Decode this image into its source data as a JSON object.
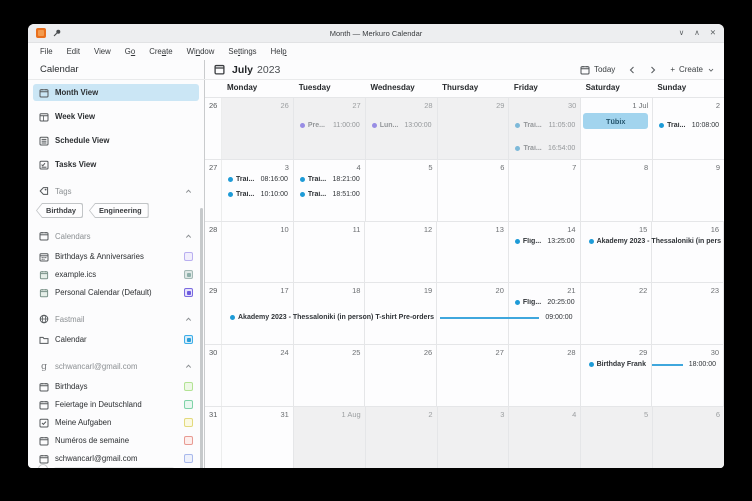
{
  "window": {
    "title": "Month — Merkuro Calendar",
    "controls": {
      "minimize": "∨",
      "maximize": "∧",
      "close": "✕"
    }
  },
  "menubar": [
    {
      "label": "File"
    },
    {
      "label": "Edit"
    },
    {
      "label": "View"
    },
    {
      "label": "Go",
      "underline": 1
    },
    {
      "label": "Create",
      "underline": 3
    },
    {
      "label": "Window",
      "underline": 2
    },
    {
      "label": "Settings",
      "underline": 2
    },
    {
      "label": "Help",
      "underline": 3
    }
  ],
  "toolbar": {
    "month": "July",
    "year": "2023",
    "today_label": "Today",
    "create_label": "Create",
    "plus": "+"
  },
  "sidebar": {
    "header": "Calendar",
    "views": [
      {
        "label": "Month View",
        "icon": "month-view",
        "selected": true
      },
      {
        "label": "Week View",
        "icon": "week-view",
        "selected": false
      },
      {
        "label": "Schedule View",
        "icon": "schedule-view",
        "selected": false
      },
      {
        "label": "Tasks View",
        "icon": "tasks-view",
        "selected": false
      }
    ],
    "tags": {
      "header": "Tags",
      "items": [
        "Birthday",
        "Engineering"
      ]
    },
    "groups": [
      {
        "header": "Calendars",
        "icon": "calendar",
        "items": [
          {
            "label": "Birthdays & Anniversaries",
            "icon": "birthday-calendar",
            "check": {
              "bg": "#f1eefc",
              "border": "#b9aff0",
              "inner": ""
            }
          },
          {
            "label": "example.ics",
            "icon": "calendar-sheet",
            "check": {
              "bg": "#dfe8e6",
              "border": "#a3b9b5",
              "inner": "#8fb0ab"
            }
          },
          {
            "label": "Personal Calendar (Default)",
            "icon": "calendar-sheet",
            "check": {
              "bg": "#e6e2fb",
              "border": "#7a6ae0",
              "inner": "#6d5ce0"
            }
          }
        ]
      },
      {
        "header": "Fastmail",
        "icon": "globe",
        "items": [
          {
            "label": "Calendar",
            "icon": "folder",
            "check": {
              "bg": "#d8edf9",
              "border": "#3daee9",
              "inner": "#2d9fd9"
            }
          }
        ]
      },
      {
        "header": "schwancarl@gmail.com",
        "icon": "google",
        "items": [
          {
            "label": "Birthdays",
            "icon": "calendar",
            "check": {
              "bg": "#eef8e6",
              "border": "#b3e394",
              "inner": ""
            }
          },
          {
            "label": "Feiertage in Deutschland",
            "icon": "calendar",
            "check": {
              "bg": "#e9f7f0",
              "border": "#7fd3a8",
              "inner": ""
            }
          },
          {
            "label": "Meine Aufgaben",
            "icon": "task",
            "check": {
              "bg": "#fbf9e2",
              "border": "#e3da7c",
              "inner": ""
            }
          },
          {
            "label": "Numéros de semaine",
            "icon": "calendar",
            "check": {
              "bg": "#fdeeec",
              "border": "#e89a92",
              "inner": ""
            }
          },
          {
            "label": "schwancarl@gmail.com",
            "icon": "calendar",
            "check": {
              "bg": "#eef1fb",
              "border": "#a9b9ec",
              "inner": ""
            }
          }
        ]
      }
    ]
  },
  "colors": {
    "accent": "#3daee9",
    "event_blue": "#1e9bd7",
    "event_blue_muted": "#7db9d9",
    "event_purple": "#988de4",
    "multiday_line": "#3fa7dd",
    "allday_bg": "#a2d4ee",
    "allday_text": "#25556e",
    "selected_view_bg": "#cbe6f5",
    "out_month_bg": "#f0f0f1"
  },
  "calendar": {
    "day_headers": [
      "Monday",
      "Tuesday",
      "Wednesday",
      "Thursday",
      "Friday",
      "Saturday",
      "Sunday"
    ],
    "weeks": [
      {
        "number": "26",
        "days": [
          {
            "date": "26",
            "out": true,
            "events": []
          },
          {
            "date": "27",
            "out": true,
            "events": [
              {
                "title": "Pre...",
                "time": "11:00:00",
                "color": "purple",
                "muted": true
              }
            ]
          },
          {
            "date": "28",
            "out": true,
            "events": [
              {
                "title": "Lun...",
                "time": "13:00:00",
                "color": "purple",
                "muted": true
              }
            ]
          },
          {
            "date": "29",
            "out": true,
            "events": []
          },
          {
            "date": "30",
            "out": true,
            "events": [
              {
                "title": "Trai...",
                "time": "11:05:00",
                "color": "blue-muted",
                "muted": true
              },
              {
                "title": "Trai...",
                "time": "16:54:00",
                "color": "blue-muted",
                "muted": true
              }
            ]
          },
          {
            "date": "1 Jul",
            "out": false,
            "events": [],
            "allday": [
              {
                "title": "Tübix"
              }
            ]
          },
          {
            "date": "2",
            "out": false,
            "events": [
              {
                "title": "Trai...",
                "time": "10:08:00",
                "color": "blue",
                "muted": false
              }
            ]
          }
        ],
        "multiday": []
      },
      {
        "number": "27",
        "days": [
          {
            "date": "3",
            "out": false,
            "events": [
              {
                "title": "Trai...",
                "time": "08:16:00",
                "color": "blue",
                "muted": false
              },
              {
                "title": "Trai...",
                "time": "10:10:00",
                "color": "blue",
                "muted": false
              }
            ]
          },
          {
            "date": "4",
            "out": false,
            "events": [
              {
                "title": "Trai...",
                "time": "18:21:00",
                "color": "blue",
                "muted": false
              },
              {
                "title": "Trai...",
                "time": "18:51:00",
                "color": "blue",
                "muted": false
              }
            ]
          },
          {
            "date": "5",
            "out": false,
            "events": []
          },
          {
            "date": "6",
            "out": false,
            "events": []
          },
          {
            "date": "7",
            "out": false,
            "events": []
          },
          {
            "date": "8",
            "out": false,
            "events": []
          },
          {
            "date": "9",
            "out": false,
            "events": []
          }
        ],
        "multiday": []
      },
      {
        "number": "28",
        "days": [
          {
            "date": "10",
            "out": false,
            "events": []
          },
          {
            "date": "11",
            "out": false,
            "events": []
          },
          {
            "date": "12",
            "out": false,
            "events": []
          },
          {
            "date": "13",
            "out": false,
            "events": []
          },
          {
            "date": "14",
            "out": false,
            "events": [
              {
                "title": "Flig...",
                "time": "13:25:00",
                "color": "blue",
                "muted": false
              }
            ]
          },
          {
            "date": "15",
            "out": false,
            "events": []
          },
          {
            "date": "16",
            "out": false,
            "events": []
          }
        ],
        "multiday": [
          {
            "title": "Akademy 2023 - Thessaloniki (in pers",
            "time": "",
            "start": 5,
            "span": 2,
            "slot": 0,
            "line": false,
            "clipped": true
          }
        ]
      },
      {
        "number": "29",
        "days": [
          {
            "date": "17",
            "out": false,
            "events": []
          },
          {
            "date": "18",
            "out": false,
            "events": []
          },
          {
            "date": "19",
            "out": false,
            "events": []
          },
          {
            "date": "20",
            "out": false,
            "events": []
          },
          {
            "date": "21",
            "out": false,
            "events": [
              {
                "title": "Flig...",
                "time": "20:25:00",
                "color": "blue",
                "muted": false
              }
            ]
          },
          {
            "date": "22",
            "out": false,
            "events": []
          },
          {
            "date": "23",
            "out": false,
            "events": []
          }
        ],
        "multiday": [
          {
            "title": "Akademy 2023 - Thessaloniki (in person) T-shirt Pre-orders",
            "time": "09:00:00",
            "start": 0,
            "span": 5,
            "slot": 1,
            "line": true,
            "clipped": false
          }
        ]
      },
      {
        "number": "30",
        "days": [
          {
            "date": "24",
            "out": false,
            "events": []
          },
          {
            "date": "25",
            "out": false,
            "events": []
          },
          {
            "date": "26",
            "out": false,
            "events": []
          },
          {
            "date": "27",
            "out": false,
            "events": []
          },
          {
            "date": "28",
            "out": false,
            "events": []
          },
          {
            "date": "29",
            "out": false,
            "events": []
          },
          {
            "date": "30",
            "out": false,
            "events": []
          }
        ],
        "multiday": [
          {
            "title": "Birthday Frank",
            "time": "18:00:00",
            "start": 5,
            "span": 2,
            "slot": 0,
            "line": true,
            "clipped": false
          }
        ]
      },
      {
        "number": "31",
        "days": [
          {
            "date": "31",
            "out": false,
            "events": []
          },
          {
            "date": "1 Aug",
            "out": true,
            "events": []
          },
          {
            "date": "2",
            "out": true,
            "events": []
          },
          {
            "date": "3",
            "out": true,
            "events": []
          },
          {
            "date": "4",
            "out": true,
            "events": []
          },
          {
            "date": "5",
            "out": true,
            "events": []
          },
          {
            "date": "6",
            "out": true,
            "events": []
          }
        ],
        "multiday": []
      }
    ]
  }
}
